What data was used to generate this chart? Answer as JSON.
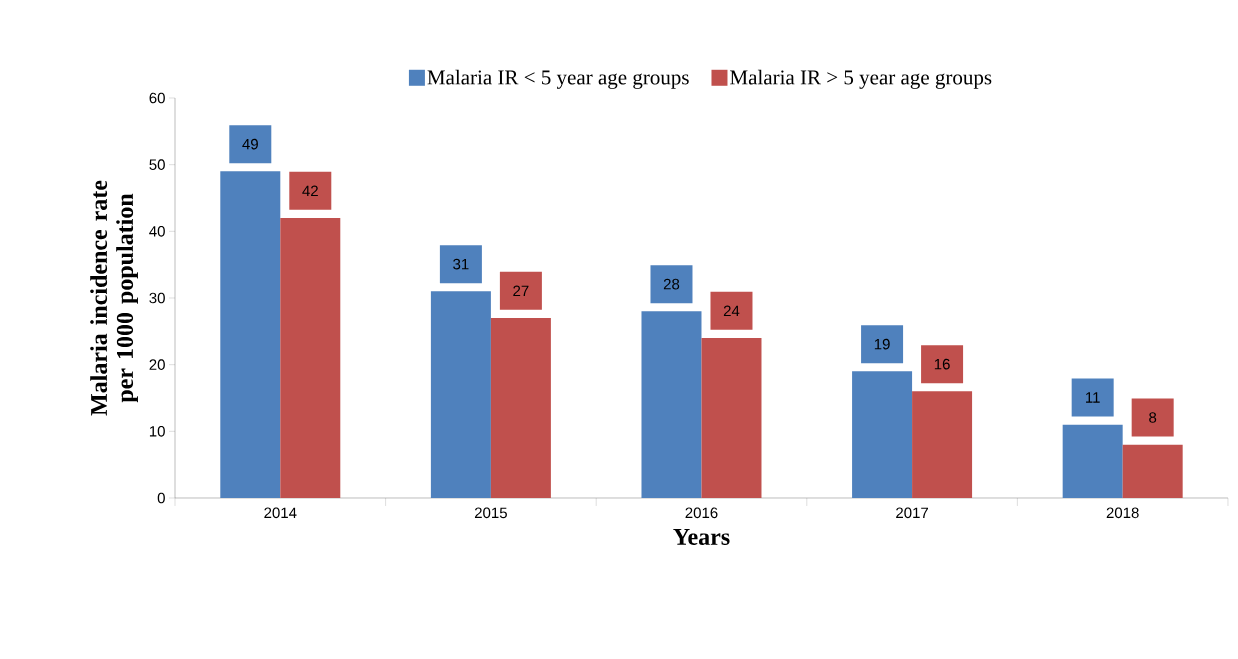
{
  "chart_data": {
    "type": "bar",
    "xlabel": "Years",
    "ylabel": "Malaria incidence rate per 1000 population",
    "categories": [
      "2014",
      "2015",
      "2016",
      "2017",
      "2018"
    ],
    "series": [
      {
        "name": "Malaria IR < 5 year age groups",
        "color": "#4f81bd",
        "values": [
          49,
          31,
          28,
          19,
          11
        ]
      },
      {
        "name": "Malaria IR > 5 year age groups",
        "color": "#c0504d",
        "values": [
          42,
          27,
          24,
          16,
          8
        ]
      }
    ],
    "ylim": [
      0,
      60
    ],
    "yticks": [
      0,
      10,
      20,
      30,
      40,
      50,
      60
    ],
    "legend": "top",
    "data_labels": true
  }
}
